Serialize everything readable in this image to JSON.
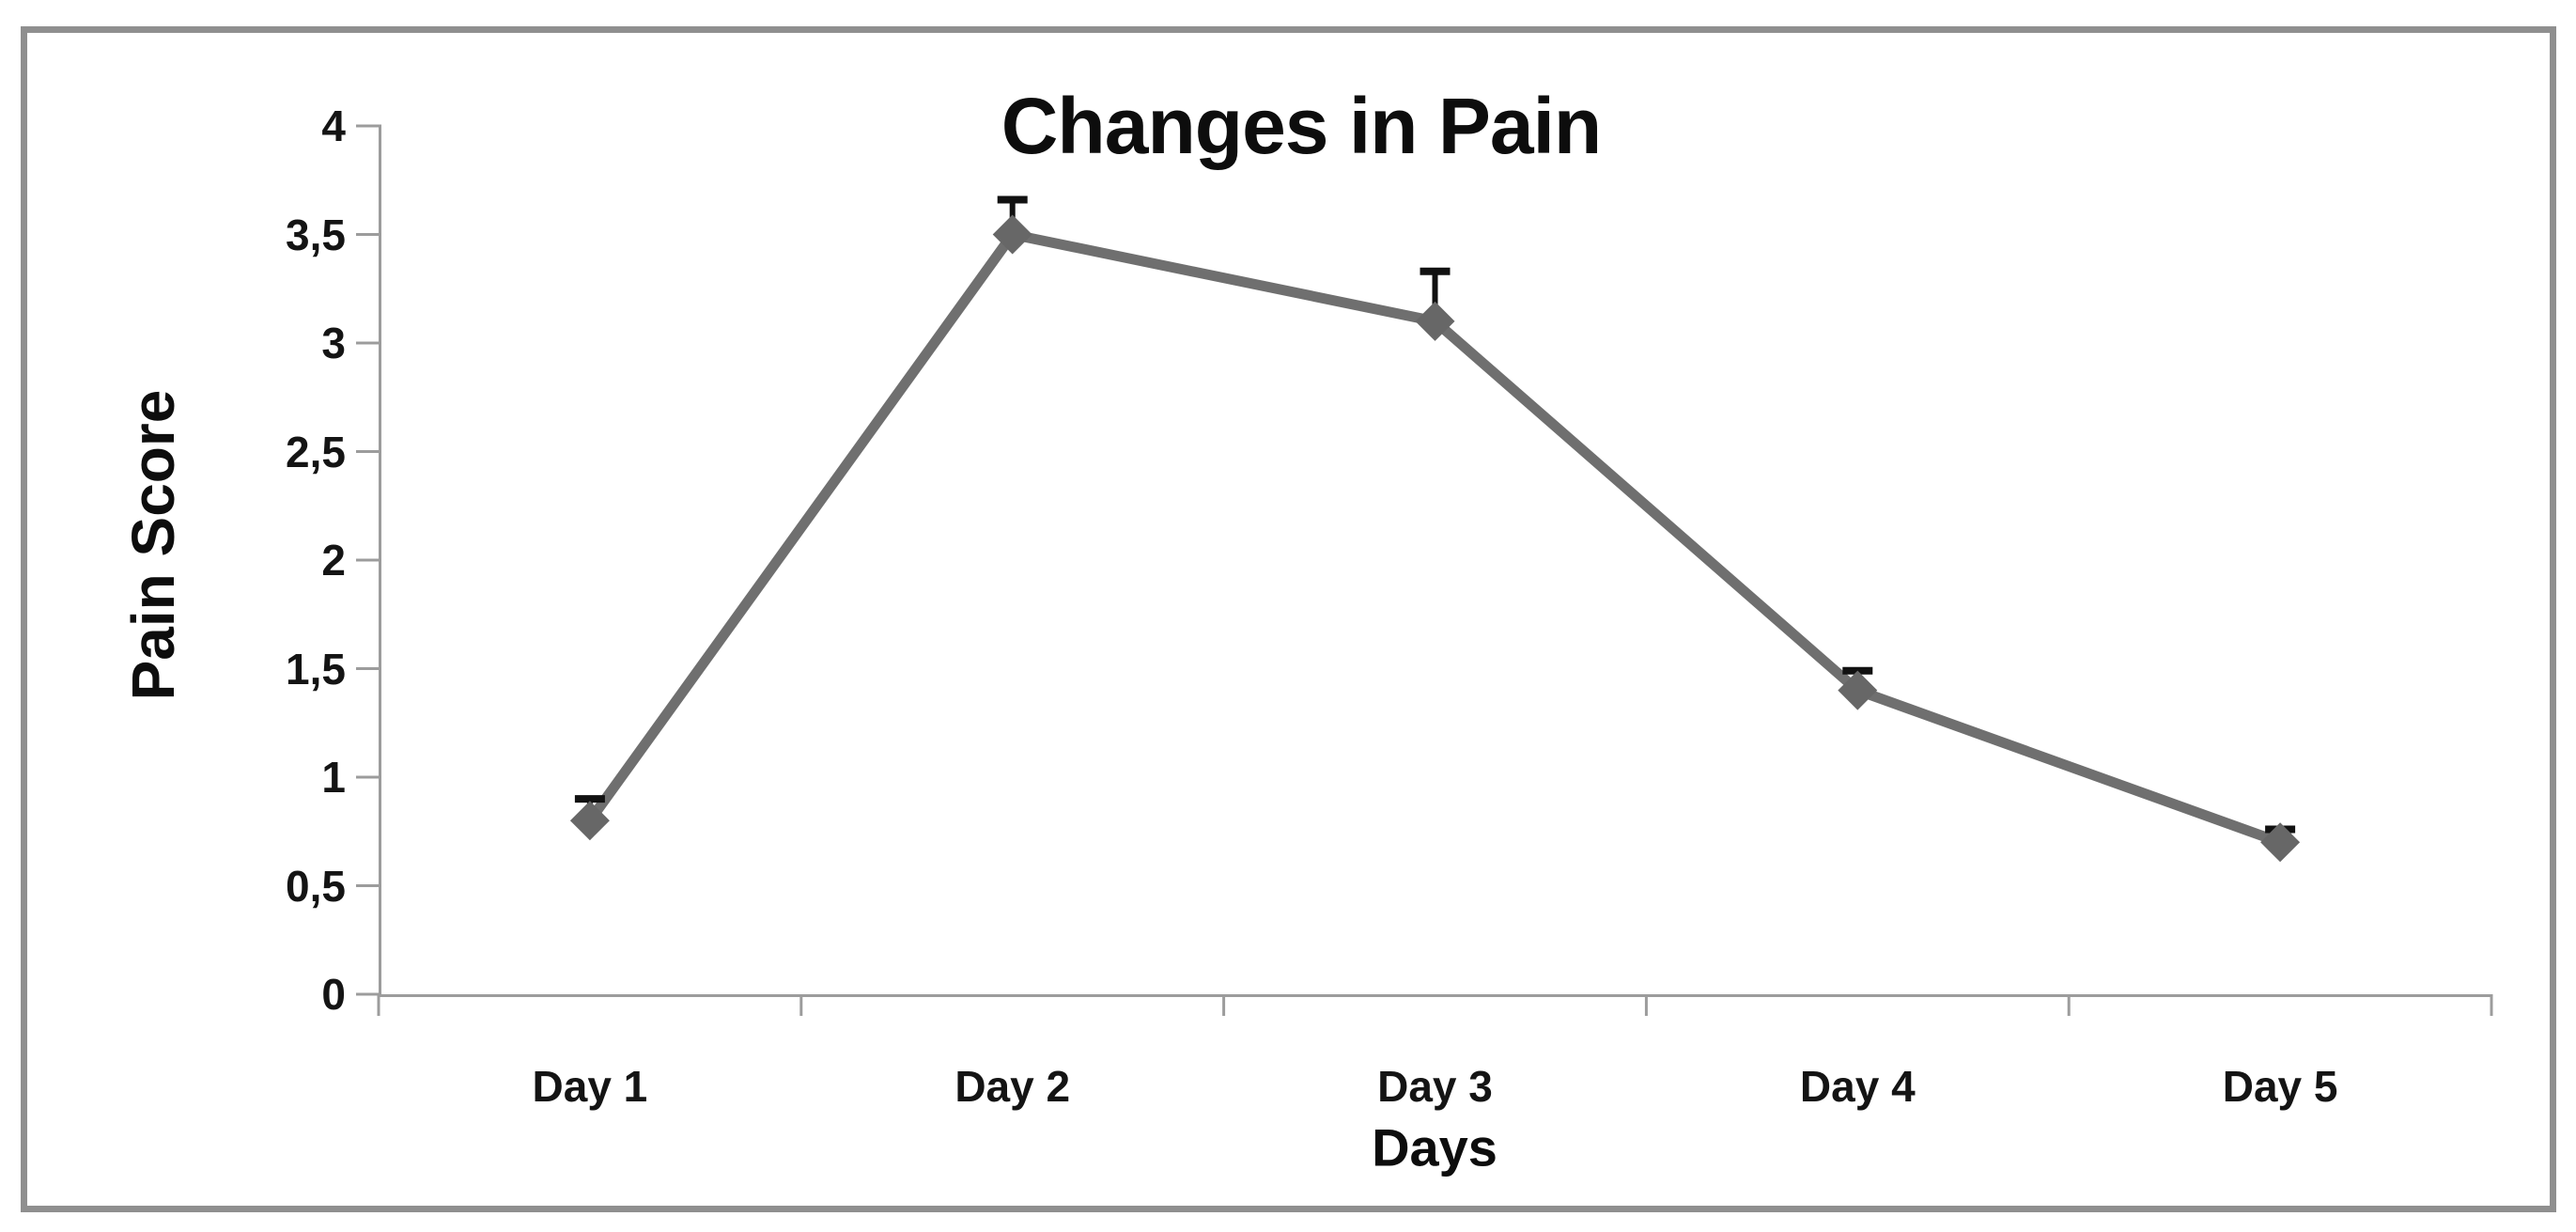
{
  "window": {
    "background_color": "#ffffff",
    "frame_color": "#8f8f8f"
  },
  "chart_data": {
    "type": "line",
    "title": "Changes in Pain",
    "xlabel": "Days",
    "ylabel": "Pain Score",
    "categories": [
      "Day 1",
      "Day 2",
      "Day 3",
      "Day 4",
      "Day 5"
    ],
    "series": [
      {
        "name": "Pain Score",
        "values": [
          0.8,
          3.5,
          3.1,
          1.4,
          0.7
        ],
        "upper_errors": [
          0.1,
          0.16,
          0.23,
          0.09,
          0.06
        ]
      }
    ],
    "ylim": [
      0,
      4
    ],
    "ytick_step": 0.5,
    "ytick_labels_top_to_bottom": [
      "4",
      "3,5",
      "3",
      "2,5",
      "2",
      "1,5",
      "1",
      "0,5",
      "0"
    ],
    "decimal_separator": ",",
    "grid": false,
    "legend": false,
    "marker": "diamond",
    "line_color": "#6f6f6f",
    "marker_color": "#676767",
    "error_bar_color": "#111111",
    "axis_color": "#9c9c9c",
    "text_color": "#0d0d0d"
  }
}
